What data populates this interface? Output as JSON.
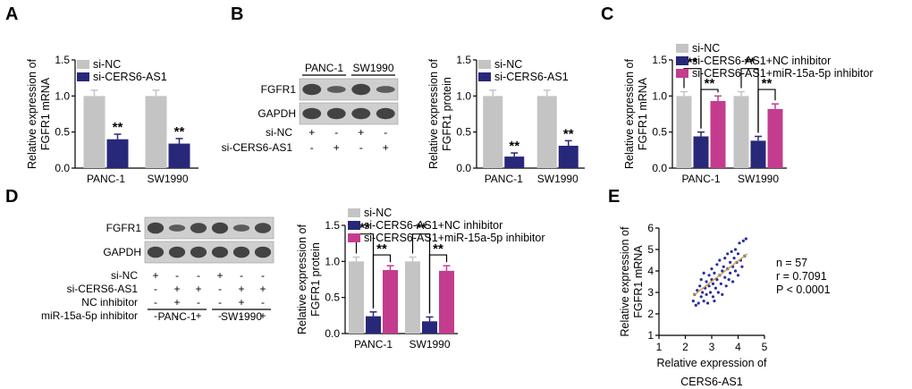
{
  "panels": {
    "A": "A",
    "B": "B",
    "C": "C",
    "D": "D",
    "E": "E"
  },
  "colors": {
    "gray": "#c4c4c4",
    "navy": "#28287a",
    "magenta": "#c43c8e",
    "scatter": "#2a2fa0",
    "fit": "#c9a24a"
  },
  "blot_b": {
    "groups": [
      "PANC-1",
      "SW1990"
    ],
    "bands": [
      "FGFR1",
      "GAPDH"
    ],
    "rows": [
      {
        "label": "si-NC",
        "signs": [
          "+",
          "-",
          "+",
          "-"
        ]
      },
      {
        "label": "si-CERS6-AS1",
        "signs": [
          "-",
          "+",
          "-",
          "+"
        ]
      }
    ]
  },
  "blot_d": {
    "groups": [
      "PANC-1",
      "SW1990"
    ],
    "bands": [
      "FGFR1",
      "GAPDH"
    ],
    "rows": [
      {
        "label": "si-NC",
        "signs": [
          "+",
          "-",
          "-",
          "+",
          "-",
          "-"
        ]
      },
      {
        "label": "si-CERS6-AS1",
        "signs": [
          "-",
          "+",
          "+",
          "-",
          "+",
          "+"
        ]
      },
      {
        "label": "NC inhibitor",
        "signs": [
          "-",
          "+",
          "-",
          "-",
          "+",
          "-"
        ]
      },
      {
        "label": "miR-15a-5p inhibitor",
        "signs": [
          "-",
          "-",
          "+",
          "-",
          "-",
          "+"
        ]
      }
    ]
  },
  "chart_data": [
    {
      "id": "A",
      "type": "bar",
      "categories": [
        "PANC-1",
        "SW1990"
      ],
      "ylabel": "Relative expression of FGFR1 mRNA",
      "ylabel_lines": [
        "Relative expression of",
        "FGFR1 mRNA"
      ],
      "ylim": [
        0,
        1.5
      ],
      "yticks": [
        "0.0",
        "0.5",
        "1.0",
        "1.5"
      ],
      "legend_position": "top",
      "series": [
        {
          "name": "si-NC",
          "color": "#c4c4c4",
          "values": [
            1.0,
            1.0
          ],
          "errors": [
            0.08,
            0.08
          ]
        },
        {
          "name": "si-CERS6-AS1",
          "color": "#28287a",
          "values": [
            0.4,
            0.34
          ],
          "errors": [
            0.07,
            0.07
          ]
        }
      ],
      "annotations": [
        {
          "series": 1,
          "cat": 0,
          "text": "**"
        },
        {
          "series": 1,
          "cat": 1,
          "text": "**"
        }
      ]
    },
    {
      "id": "B",
      "type": "bar",
      "categories": [
        "PANC-1",
        "SW1990"
      ],
      "ylabel": "Relative expression of FGFR1 protein",
      "ylabel_lines": [
        "Relative expression of",
        "FGFR1 protein"
      ],
      "ylim": [
        0,
        1.5
      ],
      "yticks": [
        "0.0",
        "0.5",
        "1.0",
        "1.5"
      ],
      "legend_position": "top",
      "series": [
        {
          "name": "si-NC",
          "color": "#c4c4c4",
          "values": [
            1.0,
            1.0
          ],
          "errors": [
            0.08,
            0.08
          ]
        },
        {
          "name": "si-CERS6-AS1",
          "color": "#28287a",
          "values": [
            0.16,
            0.31
          ],
          "errors": [
            0.05,
            0.07
          ]
        }
      ],
      "annotations": [
        {
          "series": 1,
          "cat": 0,
          "text": "**"
        },
        {
          "series": 1,
          "cat": 1,
          "text": "**"
        }
      ]
    },
    {
      "id": "C",
      "type": "bar",
      "categories": [
        "PANC-1",
        "SW1990"
      ],
      "ylabel": "Relative expression of FGFR1 mRNA",
      "ylabel_lines": [
        "Relative expression of",
        "FGFR1 mRNA"
      ],
      "ylim": [
        0,
        1.5
      ],
      "yticks": [
        "0.0",
        "0.5",
        "1.0",
        "1.5"
      ],
      "legend_position": "top",
      "series": [
        {
          "name": "si-NC",
          "color": "#c4c4c4",
          "values": [
            1.0,
            1.0
          ],
          "errors": [
            0.06,
            0.06
          ]
        },
        {
          "name": "si-CERS6-AS1+NC inhibitor",
          "color": "#28287a",
          "values": [
            0.44,
            0.38
          ],
          "errors": [
            0.06,
            0.06
          ]
        },
        {
          "name": "si-CERS6-AS1+miR-15a-5p inhibitor",
          "color": "#c43c8e",
          "values": [
            0.93,
            0.82
          ],
          "errors": [
            0.07,
            0.07
          ]
        }
      ],
      "brackets": [
        {
          "cat": 0,
          "from": 0,
          "to": 1,
          "text": "**"
        },
        {
          "cat": 0,
          "from": 1,
          "to": 2,
          "text": "**"
        },
        {
          "cat": 1,
          "from": 0,
          "to": 1,
          "text": "**"
        },
        {
          "cat": 1,
          "from": 1,
          "to": 2,
          "text": "**"
        }
      ]
    },
    {
      "id": "D",
      "type": "bar",
      "categories": [
        "PANC-1",
        "SW1990"
      ],
      "ylabel": "Relative expression of FGFR1 protein",
      "ylabel_lines": [
        "Relative expression of",
        "FGFR1 protein"
      ],
      "ylim": [
        0,
        1.5
      ],
      "yticks": [
        "0.0",
        "0.5",
        "1.0",
        "1.5"
      ],
      "legend_position": "top",
      "series": [
        {
          "name": "si-NC",
          "color": "#c4c4c4",
          "values": [
            1.0,
            1.0
          ],
          "errors": [
            0.06,
            0.06
          ]
        },
        {
          "name": "si-CERS6-AS1+NC inhibitor",
          "color": "#28287a",
          "values": [
            0.24,
            0.17
          ],
          "errors": [
            0.06,
            0.06
          ]
        },
        {
          "name": "si-CERS6-AS1+miR-15a-5p inhibitor",
          "color": "#c43c8e",
          "values": [
            0.88,
            0.87
          ],
          "errors": [
            0.06,
            0.07
          ]
        }
      ],
      "brackets": [
        {
          "cat": 0,
          "from": 0,
          "to": 1,
          "text": "**"
        },
        {
          "cat": 0,
          "from": 1,
          "to": 2,
          "text": "**"
        },
        {
          "cat": 1,
          "from": 0,
          "to": 1,
          "text": "**"
        },
        {
          "cat": 1,
          "from": 1,
          "to": 2,
          "text": "**"
        }
      ]
    },
    {
      "id": "E",
      "type": "scatter",
      "xlabel": "Relative expression of CERS6-AS1",
      "xlabel_lines": [
        "Relative expression of",
        "CERS6-AS1"
      ],
      "ylabel": "Relative expression of FGFR1 mRNA",
      "ylabel_lines": [
        "Relative expression of",
        "FGFR1 mRNA"
      ],
      "xlim": [
        1,
        5
      ],
      "ylim": [
        1,
        6
      ],
      "xticks": [
        "1",
        "2",
        "3",
        "4",
        "5"
      ],
      "yticks": [
        "1",
        "2",
        "3",
        "4",
        "5",
        "6"
      ],
      "stats": [
        "n = 57",
        "r = 0.7091",
        "P < 0.0001"
      ],
      "fit": {
        "x": [
          2.3,
          4.35
        ],
        "y": [
          2.85,
          4.8
        ]
      },
      "points": [
        [
          2.3,
          2.6
        ],
        [
          2.35,
          2.9
        ],
        [
          2.4,
          2.4
        ],
        [
          2.45,
          3.1
        ],
        [
          2.5,
          2.5
        ],
        [
          2.55,
          3.3
        ],
        [
          2.6,
          2.8
        ],
        [
          2.6,
          3.6
        ],
        [
          2.65,
          3.0
        ],
        [
          2.7,
          2.6
        ],
        [
          2.7,
          3.9
        ],
        [
          2.75,
          3.2
        ],
        [
          2.8,
          2.9
        ],
        [
          2.8,
          3.5
        ],
        [
          2.85,
          2.5
        ],
        [
          2.9,
          3.8
        ],
        [
          2.9,
          3.3
        ],
        [
          2.95,
          3.0
        ],
        [
          3.0,
          3.6
        ],
        [
          3.0,
          4.1
        ],
        [
          3.05,
          2.8
        ],
        [
          3.05,
          3.4
        ],
        [
          3.1,
          3.9
        ],
        [
          3.1,
          2.6
        ],
        [
          3.15,
          3.2
        ],
        [
          3.2,
          4.3
        ],
        [
          3.2,
          3.6
        ],
        [
          3.25,
          3.0
        ],
        [
          3.3,
          3.8
        ],
        [
          3.3,
          4.5
        ],
        [
          3.35,
          3.4
        ],
        [
          3.4,
          4.0
        ],
        [
          3.4,
          2.9
        ],
        [
          3.45,
          4.2
        ],
        [
          3.5,
          3.7
        ],
        [
          3.5,
          4.6
        ],
        [
          3.55,
          3.3
        ],
        [
          3.6,
          4.1
        ],
        [
          3.6,
          4.8
        ],
        [
          3.65,
          3.6
        ],
        [
          3.7,
          4.4
        ],
        [
          3.7,
          3.9
        ],
        [
          3.75,
          4.9
        ],
        [
          3.8,
          4.2
        ],
        [
          3.8,
          3.5
        ],
        [
          3.85,
          4.6
        ],
        [
          3.9,
          4.0
        ],
        [
          3.9,
          5.0
        ],
        [
          3.95,
          4.4
        ],
        [
          4.0,
          4.8
        ],
        [
          4.0,
          3.8
        ],
        [
          4.05,
          5.3
        ],
        [
          4.1,
          4.5
        ],
        [
          4.15,
          4.2
        ],
        [
          4.2,
          5.4
        ],
        [
          4.25,
          4.7
        ],
        [
          4.3,
          5.5
        ]
      ]
    }
  ]
}
